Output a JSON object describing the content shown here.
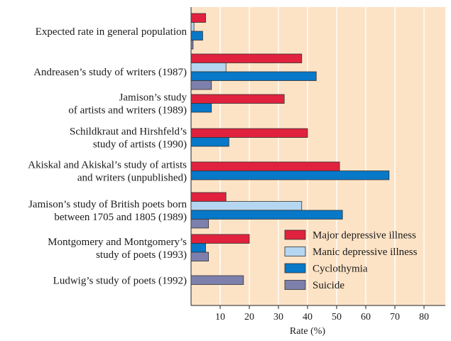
{
  "chart_data": {
    "type": "bar",
    "orientation": "horizontal",
    "xlabel": "Rate (%)",
    "xlim": [
      0,
      85
    ],
    "xticks": [
      10,
      20,
      30,
      40,
      50,
      60,
      70,
      80
    ],
    "background_color": "#fde3c6",
    "legend_position": "bottom-right",
    "categories": [
      [
        "Expected rate in general population"
      ],
      [
        "Andreasen’s study of writers (1987)"
      ],
      [
        "Jamison’s study",
        "of artists and writers (1989)"
      ],
      [
        "Schildkraut and Hirshfeld’s",
        "study of artists (1990)"
      ],
      [
        "Akiskal and Akiskal’s study of artists",
        "and writers  (unpublished)"
      ],
      [
        "Jamison’s study of British poets born",
        "between 1705 and 1805 (1989)"
      ],
      [
        "Montgomery and Montgomery’s",
        "study of poets (1993)"
      ],
      [
        "Ludwig’s study of poets (1992)"
      ]
    ],
    "series": [
      {
        "name": "Major depressive illness",
        "color": "#e0223e",
        "values": [
          5,
          38,
          32,
          40,
          51,
          12,
          20,
          null
        ]
      },
      {
        "name": "Manic depressive illness",
        "color": "#b5d6f0",
        "values": [
          1,
          12,
          null,
          null,
          null,
          38,
          null,
          null
        ]
      },
      {
        "name": "Cyclothymia",
        "color": "#0878c8",
        "values": [
          4,
          43,
          7,
          13,
          68,
          52,
          5,
          null
        ]
      },
      {
        "name": "Suicide",
        "color": "#7d80ac",
        "values": [
          0.7,
          7,
          null,
          null,
          null,
          6,
          6,
          18
        ]
      }
    ]
  }
}
